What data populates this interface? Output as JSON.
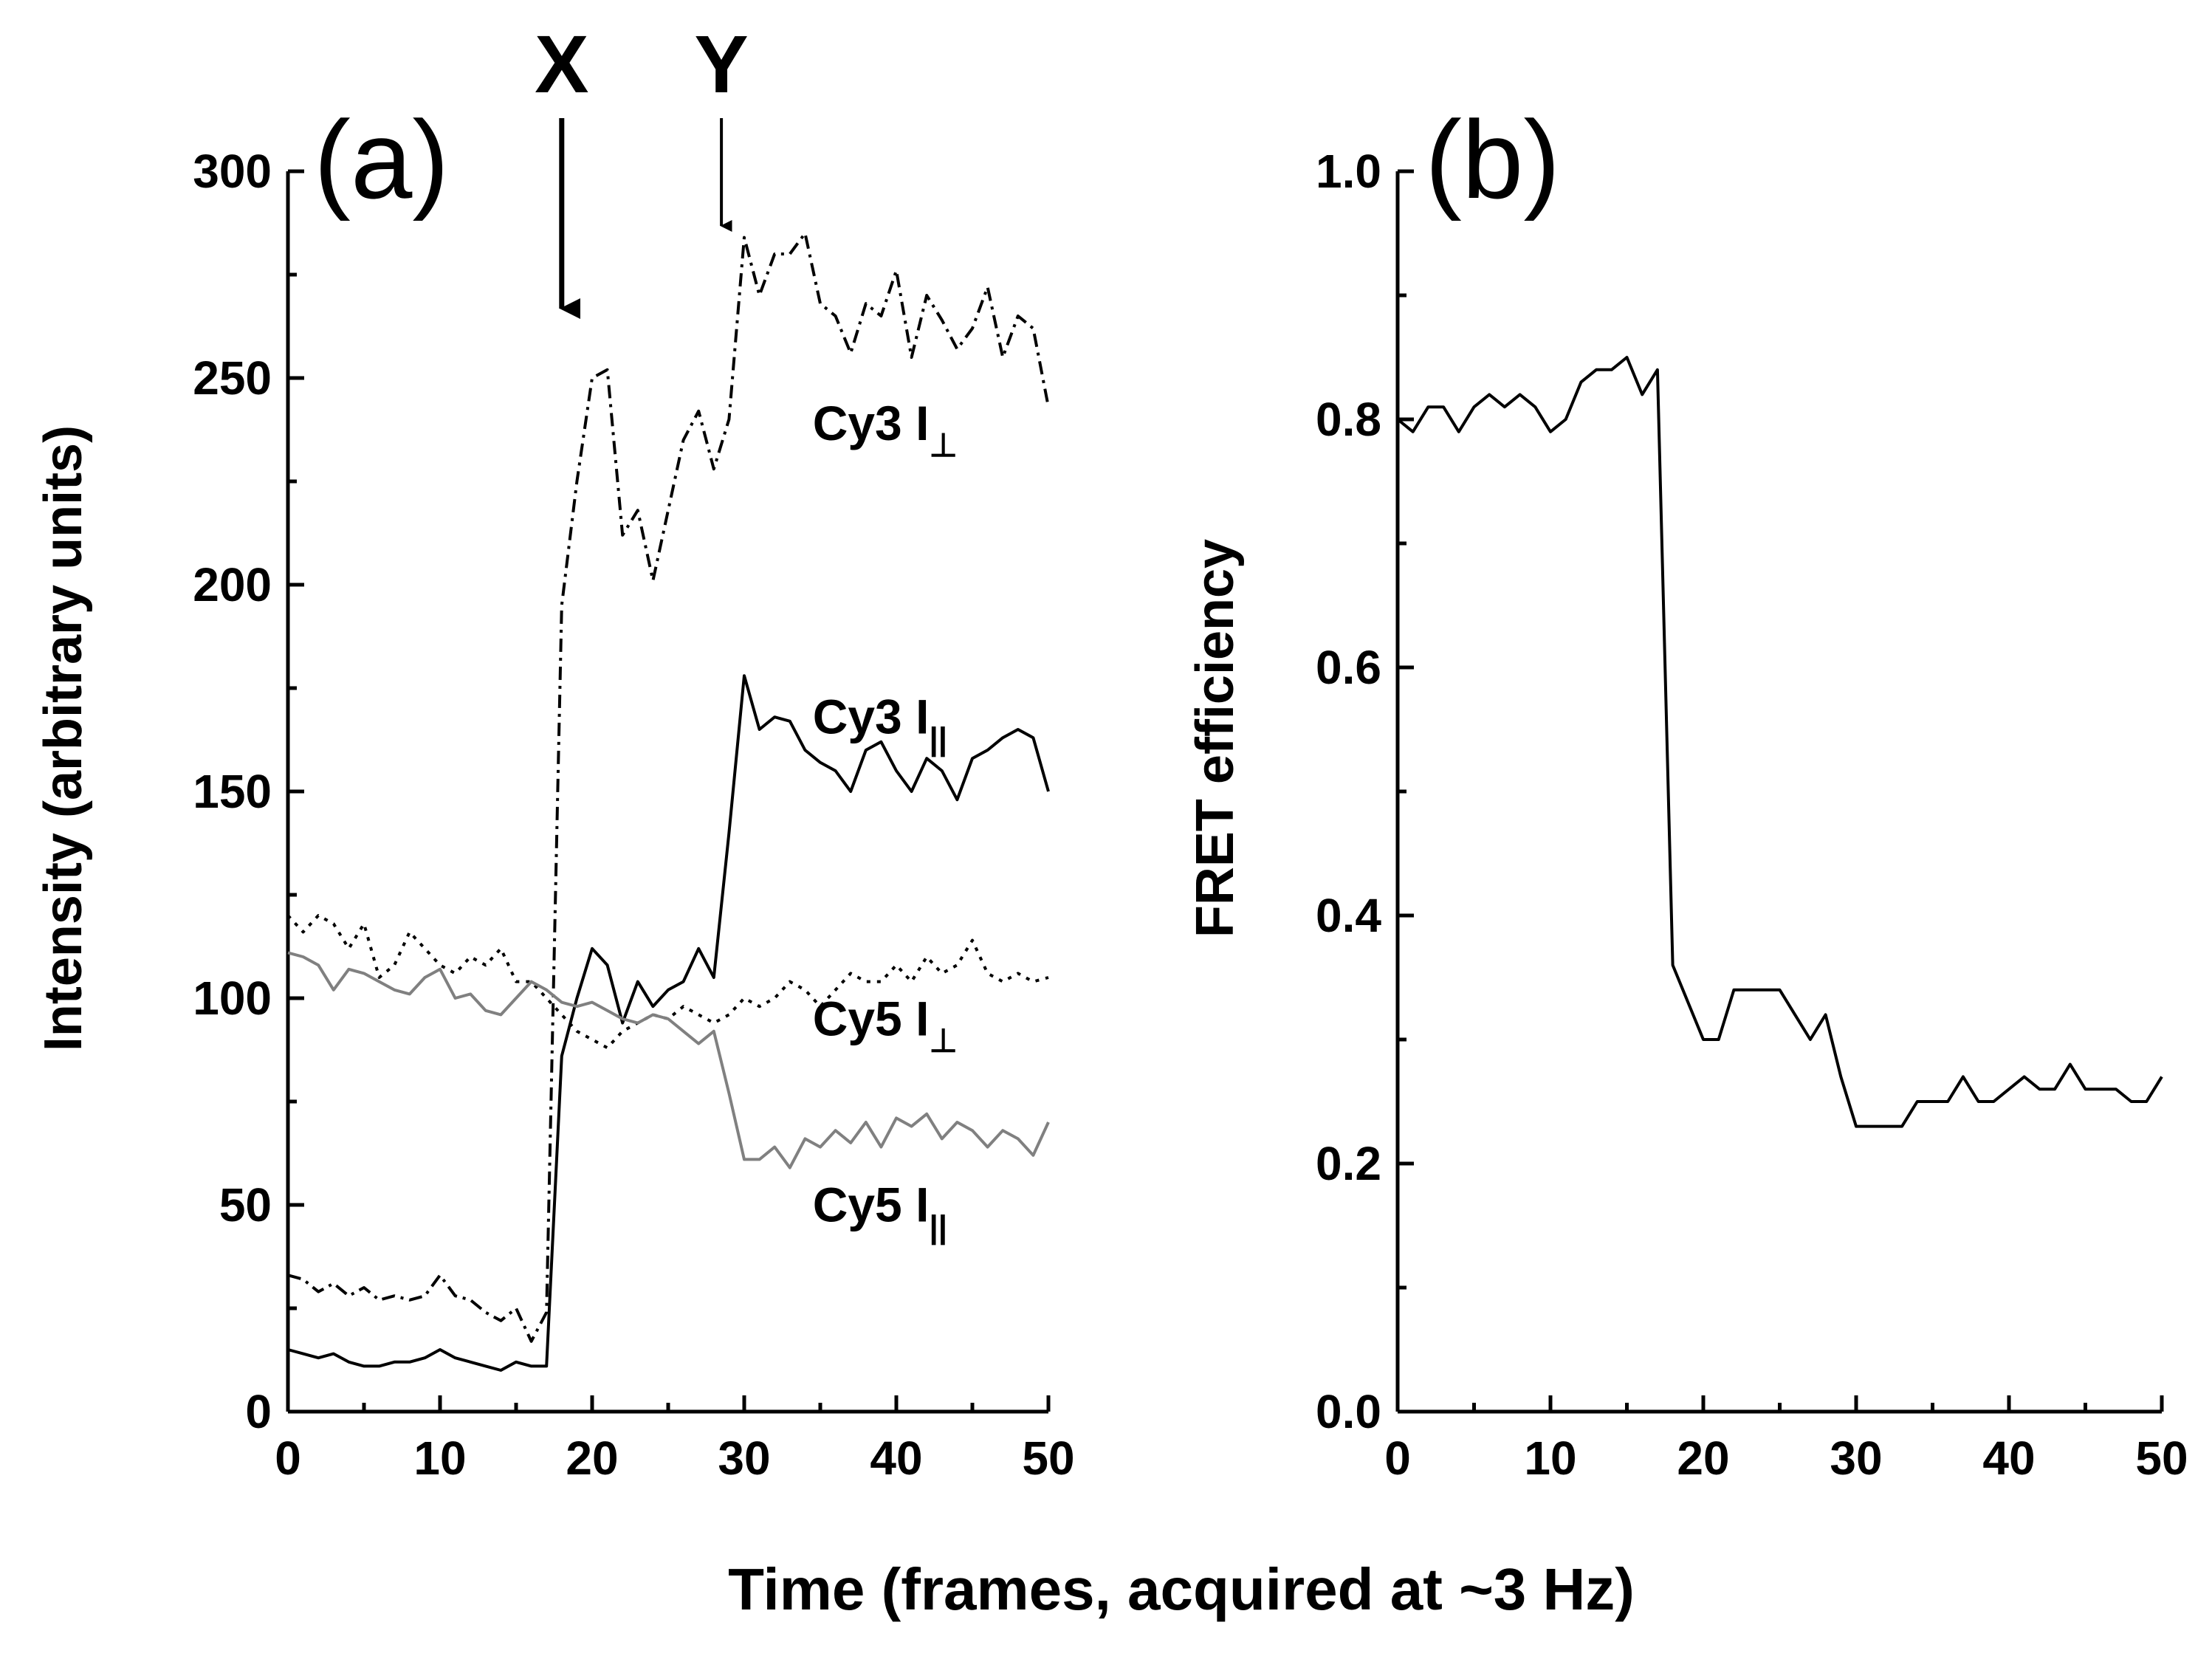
{
  "chart_data": [
    {
      "type": "line",
      "panel_label": "(a)",
      "ylabel": "Intensity (arbitrary units)",
      "xlim": [
        0,
        50
      ],
      "ylim": [
        0,
        300
      ],
      "xticks": [
        "0",
        "10",
        "20",
        "30",
        "40",
        "50"
      ],
      "yticks": [
        "0",
        "50",
        "100",
        "150",
        "200",
        "250",
        "300"
      ],
      "grid": false,
      "legend": "none (inline labels)",
      "markers": [
        {
          "label": "X",
          "x": 18,
          "arrow_tip_y": 265
        },
        {
          "label": "Y",
          "x": 28.5,
          "arrow_tip_y": 285
        }
      ],
      "series": [
        {
          "name": "Cy3 I⊥",
          "label_main": "Cy3 I",
          "label_sub": "⊥",
          "style": "dash-dot",
          "color": "#000000",
          "x": [
            0,
            1,
            2,
            3,
            4,
            5,
            6,
            7,
            8,
            9,
            10,
            11,
            12,
            13,
            14,
            15,
            16,
            17,
            18,
            19,
            20,
            21,
            22,
            23,
            24,
            25,
            26,
            27,
            28,
            29,
            30,
            31,
            32,
            33,
            34,
            35,
            36,
            37,
            38,
            39,
            40,
            41,
            42,
            43,
            44,
            45,
            46,
            47,
            48,
            49,
            50
          ],
          "y": [
            33,
            32,
            29,
            31,
            28,
            30,
            27,
            28,
            27,
            28,
            33,
            28,
            27,
            24,
            22,
            25,
            17,
            24,
            195,
            225,
            250,
            252,
            212,
            218,
            201,
            218,
            235,
            242,
            228,
            240,
            284,
            270,
            280,
            280,
            285,
            268,
            265,
            256,
            268,
            265,
            276,
            255,
            270,
            264,
            257,
            262,
            272,
            255,
            265,
            262,
            243
          ]
        },
        {
          "name": "Cy3 I||",
          "label_main": "Cy3 I",
          "label_sub": "||",
          "style": "solid",
          "color": "#000000",
          "x": [
            0,
            1,
            2,
            3,
            4,
            5,
            6,
            7,
            8,
            9,
            10,
            11,
            12,
            13,
            14,
            15,
            16,
            17,
            18,
            19,
            20,
            21,
            22,
            23,
            24,
            25,
            26,
            27,
            28,
            29,
            30,
            31,
            32,
            33,
            34,
            35,
            36,
            37,
            38,
            39,
            40,
            41,
            42,
            43,
            44,
            45,
            46,
            47,
            48,
            49,
            50
          ],
          "y": [
            15,
            14,
            13,
            14,
            12,
            11,
            11,
            12,
            12,
            13,
            15,
            13,
            12,
            11,
            10,
            12,
            11,
            11,
            86,
            100,
            112,
            108,
            94,
            104,
            98,
            102,
            104,
            112,
            105,
            140,
            178,
            165,
            168,
            167,
            160,
            157,
            155,
            150,
            160,
            162,
            155,
            150,
            158,
            155,
            148,
            158,
            160,
            163,
            165,
            163,
            150
          ]
        },
        {
          "name": "Cy5 I⊥",
          "label_main": "Cy5 I",
          "label_sub": "⊥",
          "style": "dotted",
          "color": "#000000",
          "x": [
            0,
            1,
            2,
            3,
            4,
            5,
            6,
            7,
            8,
            9,
            10,
            11,
            12,
            13,
            14,
            15,
            16,
            17,
            18,
            19,
            20,
            21,
            22,
            23,
            24,
            25,
            26,
            27,
            28,
            29,
            30,
            31,
            32,
            33,
            34,
            35,
            36,
            37,
            38,
            39,
            40,
            41,
            42,
            43,
            44,
            45,
            46,
            47,
            48,
            49,
            50
          ],
          "y": [
            120,
            116,
            120,
            118,
            112,
            118,
            105,
            108,
            116,
            112,
            108,
            106,
            110,
            108,
            112,
            104,
            104,
            100,
            96,
            92,
            90,
            88,
            92,
            94,
            96,
            95,
            98,
            96,
            94,
            96,
            100,
            98,
            100,
            104,
            102,
            98,
            102,
            106,
            104,
            104,
            108,
            104,
            110,
            106,
            108,
            114,
            106,
            104,
            106,
            104,
            105
          ]
        },
        {
          "name": "Cy5 I||",
          "label_main": "Cy5 I",
          "label_sub": "||",
          "style": "solid",
          "color": "#808080",
          "x": [
            0,
            1,
            2,
            3,
            4,
            5,
            6,
            7,
            8,
            9,
            10,
            11,
            12,
            13,
            14,
            15,
            16,
            17,
            18,
            19,
            20,
            21,
            22,
            23,
            24,
            25,
            26,
            27,
            28,
            29,
            30,
            31,
            32,
            33,
            34,
            35,
            36,
            37,
            38,
            39,
            40,
            41,
            42,
            43,
            44,
            45,
            46,
            47,
            48,
            49,
            50
          ],
          "y": [
            111,
            110,
            108,
            102,
            107,
            106,
            104,
            102,
            101,
            105,
            107,
            100,
            101,
            97,
            96,
            100,
            104,
            102,
            99,
            98,
            99,
            97,
            95,
            94,
            96,
            95,
            92,
            89,
            92,
            77,
            61,
            61,
            64,
            59,
            66,
            64,
            68,
            65,
            70,
            64,
            71,
            69,
            72,
            66,
            70,
            68,
            64,
            68,
            66,
            62,
            70
          ]
        }
      ]
    },
    {
      "type": "line",
      "panel_label": "(b)",
      "ylabel": "FRET efficiency",
      "xlim": [
        0,
        50
      ],
      "ylim": [
        0,
        1.0
      ],
      "xticks": [
        "0",
        "10",
        "20",
        "30",
        "40",
        "50"
      ],
      "yticks": [
        "0.0",
        "0.2",
        "0.4",
        "0.6",
        "0.8",
        "1.0"
      ],
      "grid": false,
      "series": [
        {
          "style": "solid",
          "color": "#000000",
          "x": [
            0,
            1,
            2,
            3,
            4,
            5,
            6,
            7,
            8,
            9,
            10,
            11,
            12,
            13,
            14,
            15,
            16,
            17,
            18,
            19,
            20,
            21,
            22,
            23,
            24,
            25,
            26,
            27,
            28,
            29,
            30,
            31,
            32,
            33,
            34,
            35,
            36,
            37,
            38,
            39,
            40,
            41,
            42,
            43,
            44,
            45,
            46,
            47,
            48,
            49,
            50
          ],
          "y": [
            0.8,
            0.79,
            0.81,
            0.81,
            0.79,
            0.81,
            0.82,
            0.81,
            0.82,
            0.81,
            0.79,
            0.8,
            0.83,
            0.84,
            0.84,
            0.85,
            0.82,
            0.84,
            0.36,
            0.33,
            0.3,
            0.3,
            0.34,
            0.34,
            0.34,
            0.34,
            0.32,
            0.3,
            0.32,
            0.27,
            0.23,
            0.23,
            0.23,
            0.23,
            0.25,
            0.25,
            0.25,
            0.27,
            0.25,
            0.25,
            0.26,
            0.27,
            0.26,
            0.26,
            0.28,
            0.26,
            0.26,
            0.26,
            0.25,
            0.25,
            0.27
          ]
        }
      ]
    }
  ],
  "shared_xlabel": "Time (frames, acquired at ~3 Hz)"
}
